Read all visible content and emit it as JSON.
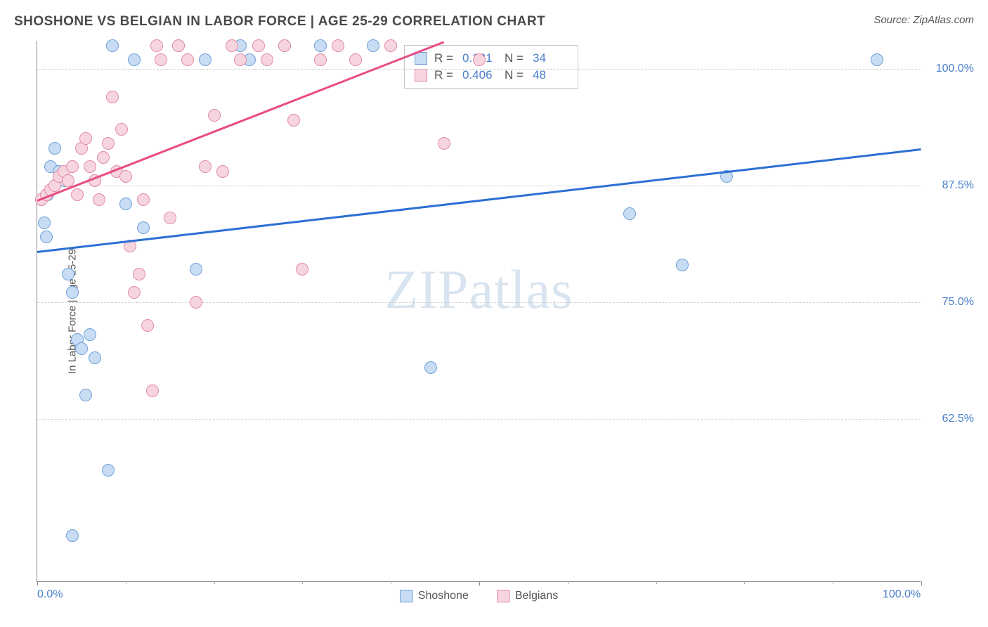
{
  "header": {
    "title": "SHOSHONE VS BELGIAN IN LABOR FORCE | AGE 25-29 CORRELATION CHART",
    "source_label": "Source: ZipAtlas.com"
  },
  "chart": {
    "type": "scatter",
    "y_axis_title": "In Labor Force | Age 25-29",
    "xlim": [
      0,
      100
    ],
    "ylim": [
      45,
      103
    ],
    "x_ticks_labeled": [
      {
        "v": 0,
        "label": "0.0%"
      },
      {
        "v": 100,
        "label": "100.0%"
      }
    ],
    "x_ticks_major": [
      0,
      50,
      100
    ],
    "x_ticks_minor": [
      10,
      20,
      30,
      40,
      60,
      70,
      80,
      90
    ],
    "y_gridlines": [
      62.5,
      75.0,
      87.5,
      100.0
    ],
    "y_tick_labels": [
      "62.5%",
      "75.0%",
      "87.5%",
      "100.0%"
    ],
    "background_color": "#ffffff",
    "grid_color": "#d0d0d0",
    "watermark": "ZIPatlas",
    "series": [
      {
        "name": "Shoshone",
        "fill": "#c8ddf3",
        "stroke": "#6fa0da",
        "trend_color": "#2d6fd4",
        "trend": {
          "y_at_x0": 80.5,
          "y_at_x100": 91.5
        },
        "r_value": "0.181",
        "n_value": "34",
        "points": [
          [
            0.5,
            86.0
          ],
          [
            0.8,
            83.5
          ],
          [
            1.0,
            82.0
          ],
          [
            1.2,
            86.5
          ],
          [
            1.5,
            89.5
          ],
          [
            2.0,
            91.5
          ],
          [
            2.5,
            89.0
          ],
          [
            3.0,
            88.0
          ],
          [
            3.5,
            78.0
          ],
          [
            4.0,
            76.0
          ],
          [
            4.5,
            71.0
          ],
          [
            5.0,
            70.0
          ],
          [
            5.5,
            65.0
          ],
          [
            6.0,
            71.5
          ],
          [
            6.5,
            69.0
          ],
          [
            4.0,
            50.0
          ],
          [
            8.0,
            57.0
          ],
          [
            8.5,
            102.5
          ],
          [
            10.0,
            85.5
          ],
          [
            11.0,
            101.0
          ],
          [
            12.0,
            83.0
          ],
          [
            16.0,
            102.5
          ],
          [
            18.0,
            78.5
          ],
          [
            19.0,
            101.0
          ],
          [
            23.0,
            102.5
          ],
          [
            24.0,
            101.0
          ],
          [
            28.0,
            102.5
          ],
          [
            32.0,
            102.5
          ],
          [
            38.0,
            102.5
          ],
          [
            44.5,
            68.0
          ],
          [
            67.0,
            84.5
          ],
          [
            73.0,
            79.0
          ],
          [
            78.0,
            88.5
          ],
          [
            95.0,
            101.0
          ]
        ]
      },
      {
        "name": "Belgians",
        "fill": "#f7d5df",
        "stroke": "#e28ba6",
        "trend_color": "#e84b82",
        "trend": {
          "y_at_x0": 86.0,
          "y_at_x46": 103.0
        },
        "r_value": "0.406",
        "n_value": "48",
        "points": [
          [
            0.5,
            86.0
          ],
          [
            1.0,
            86.5
          ],
          [
            1.5,
            87.0
          ],
          [
            2.0,
            87.5
          ],
          [
            2.5,
            88.5
          ],
          [
            3.0,
            89.0
          ],
          [
            3.5,
            88.0
          ],
          [
            4.0,
            89.5
          ],
          [
            4.5,
            86.5
          ],
          [
            5.0,
            91.5
          ],
          [
            5.5,
            92.5
          ],
          [
            6.0,
            89.5
          ],
          [
            6.5,
            88.0
          ],
          [
            7.0,
            86.0
          ],
          [
            7.5,
            90.5
          ],
          [
            8.0,
            92.0
          ],
          [
            8.5,
            97.0
          ],
          [
            9.0,
            89.0
          ],
          [
            9.5,
            93.5
          ],
          [
            10.0,
            88.5
          ],
          [
            10.5,
            81.0
          ],
          [
            11.0,
            76.0
          ],
          [
            11.5,
            78.0
          ],
          [
            12.0,
            86.0
          ],
          [
            12.5,
            72.5
          ],
          [
            13.0,
            65.5
          ],
          [
            13.5,
            102.5
          ],
          [
            14.0,
            101.0
          ],
          [
            15.0,
            84.0
          ],
          [
            16.0,
            102.5
          ],
          [
            17.0,
            101.0
          ],
          [
            18.0,
            75.0
          ],
          [
            19.0,
            89.5
          ],
          [
            20.0,
            95.0
          ],
          [
            21.0,
            89.0
          ],
          [
            22.0,
            102.5
          ],
          [
            23.0,
            101.0
          ],
          [
            25.0,
            102.5
          ],
          [
            26.0,
            101.0
          ],
          [
            28.0,
            102.5
          ],
          [
            29.0,
            94.5
          ],
          [
            30.0,
            78.5
          ],
          [
            32.0,
            101.0
          ],
          [
            34.0,
            102.5
          ],
          [
            36.0,
            101.0
          ],
          [
            40.0,
            102.5
          ],
          [
            46.0,
            92.0
          ],
          [
            50.0,
            101.0
          ]
        ]
      }
    ]
  },
  "legend_inset": {
    "r_label": "R =",
    "n_label": "N ="
  },
  "legend_bottom": {
    "series1": "Shoshone",
    "series2": "Belgians"
  }
}
